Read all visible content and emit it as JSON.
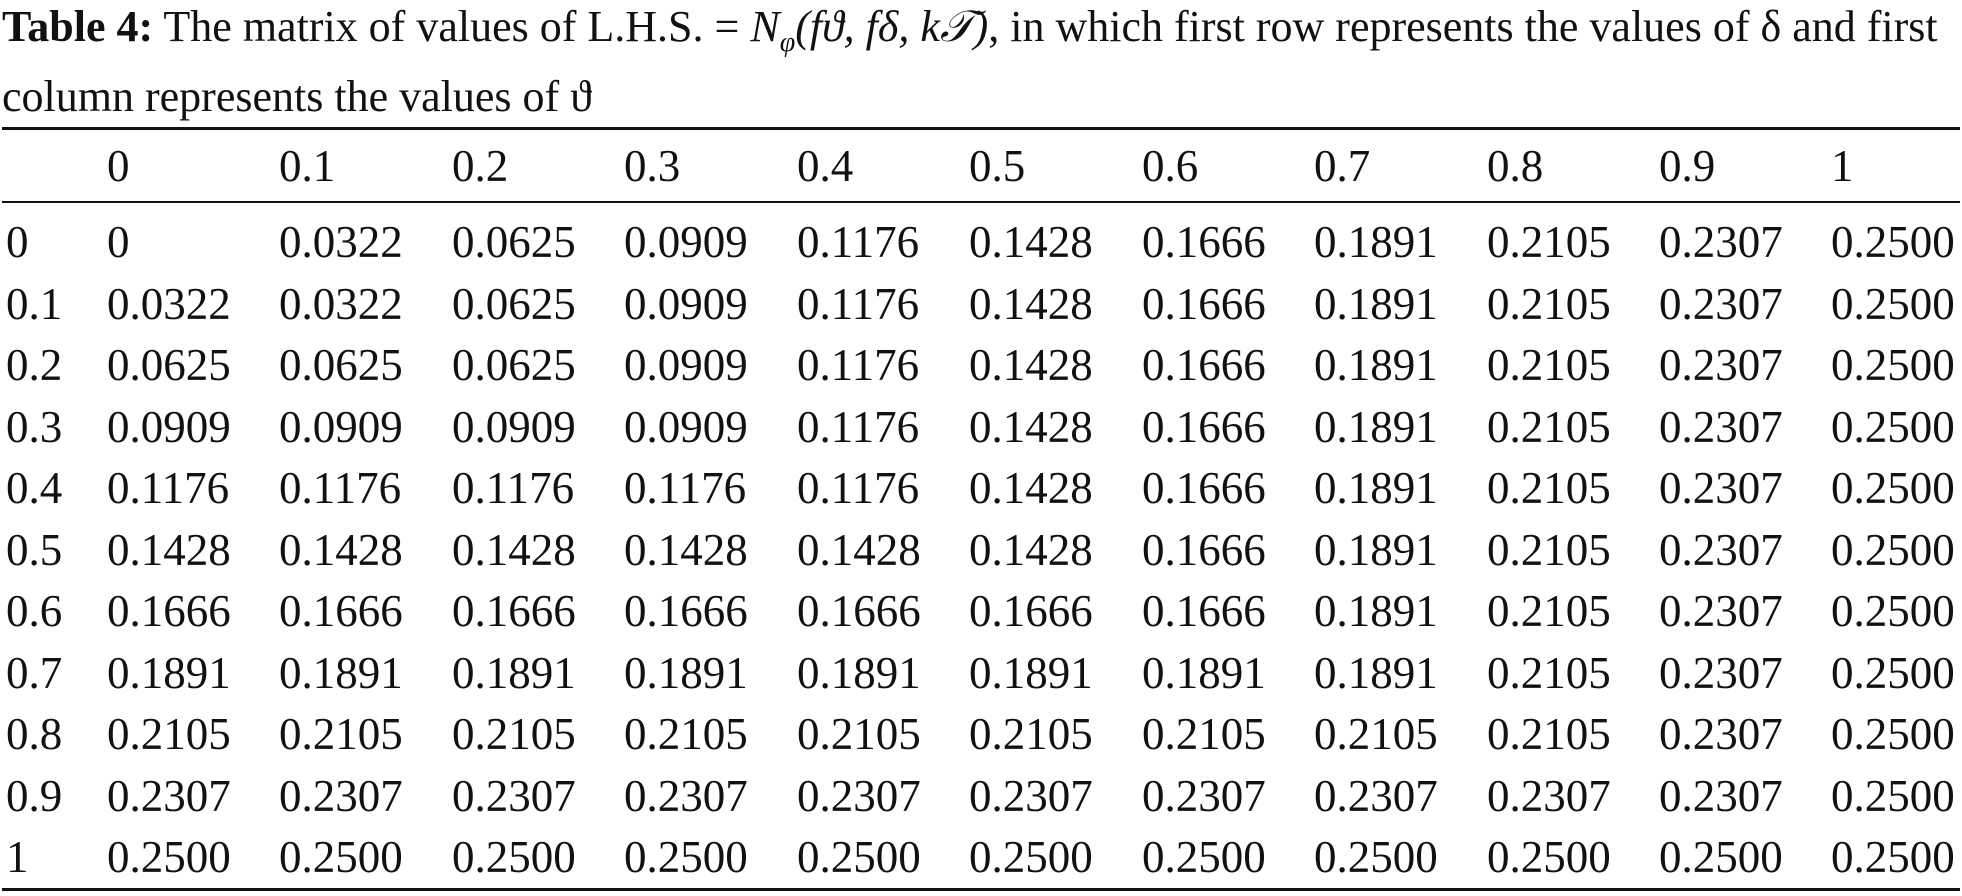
{
  "caption": {
    "label": "Table 4:",
    "prefix": "The matrix of values of L.H.S. = ",
    "math_n": "N",
    "math_sub": "φ",
    "math_rest": "(fϑ, fδ, k𝒯)",
    "suffix": ", in which first row represents the values of δ and first column represents the values of ϑ"
  },
  "table": {
    "header": [
      "0",
      "0.1",
      "0.2",
      "0.3",
      "0.4",
      "0.5",
      "0.6",
      "0.7",
      "0.8",
      "0.9",
      "1"
    ],
    "rows": [
      [
        "0",
        "0",
        "0.0322",
        "0.0625",
        "0.0909",
        "0.1176",
        "0.1428",
        "0.1666",
        "0.1891",
        "0.2105",
        "0.2307",
        "0.2500"
      ],
      [
        "0.1",
        "0.0322",
        "0.0322",
        "0.0625",
        "0.0909",
        "0.1176",
        "0.1428",
        "0.1666",
        "0.1891",
        "0.2105",
        "0.2307",
        "0.2500"
      ],
      [
        "0.2",
        "0.0625",
        "0.0625",
        "0.0625",
        "0.0909",
        "0.1176",
        "0.1428",
        "0.1666",
        "0.1891",
        "0.2105",
        "0.2307",
        "0.2500"
      ],
      [
        "0.3",
        "0.0909",
        "0.0909",
        "0.0909",
        "0.0909",
        "0.1176",
        "0.1428",
        "0.1666",
        "0.1891",
        "0.2105",
        "0.2307",
        "0.2500"
      ],
      [
        "0.4",
        "0.1176",
        "0.1176",
        "0.1176",
        "0.1176",
        "0.1176",
        "0.1428",
        "0.1666",
        "0.1891",
        "0.2105",
        "0.2307",
        "0.2500"
      ],
      [
        "0.5",
        "0.1428",
        "0.1428",
        "0.1428",
        "0.1428",
        "0.1428",
        "0.1428",
        "0.1666",
        "0.1891",
        "0.2105",
        "0.2307",
        "0.2500"
      ],
      [
        "0.6",
        "0.1666",
        "0.1666",
        "0.1666",
        "0.1666",
        "0.1666",
        "0.1666",
        "0.1666",
        "0.1891",
        "0.2105",
        "0.2307",
        "0.2500"
      ],
      [
        "0.7",
        "0.1891",
        "0.1891",
        "0.1891",
        "0.1891",
        "0.1891",
        "0.1891",
        "0.1891",
        "0.1891",
        "0.2105",
        "0.2307",
        "0.2500"
      ],
      [
        "0.8",
        "0.2105",
        "0.2105",
        "0.2105",
        "0.2105",
        "0.2105",
        "0.2105",
        "0.2105",
        "0.2105",
        "0.2105",
        "0.2307",
        "0.2500"
      ],
      [
        "0.9",
        "0.2307",
        "0.2307",
        "0.2307",
        "0.2307",
        "0.2307",
        "0.2307",
        "0.2307",
        "0.2307",
        "0.2307",
        "0.2307",
        "0.2500"
      ],
      [
        "1",
        "0.2500",
        "0.2500",
        "0.2500",
        "0.2500",
        "0.2500",
        "0.2500",
        "0.2500",
        "0.2500",
        "0.2500",
        "0.2500",
        "0.2500"
      ]
    ]
  }
}
